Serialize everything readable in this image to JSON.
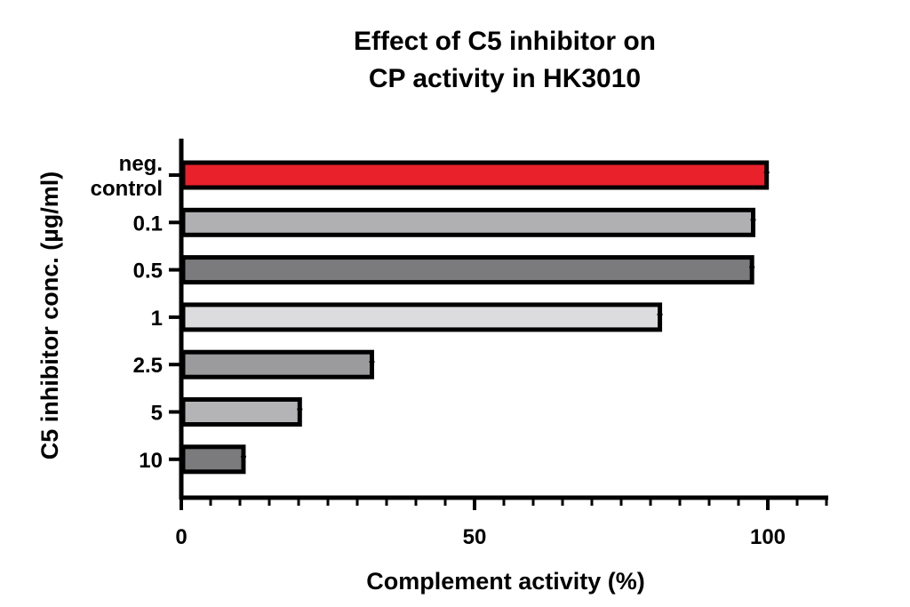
{
  "chart_data": {
    "type": "bar",
    "orientation": "horizontal",
    "title_lines": [
      "Effect of C5 inhibitor on",
      "CP activity in HK3010"
    ],
    "xlabel": "Complement activity (%)",
    "ylabel": "C5 inhibitor conc. (µg/ml)",
    "xlim": [
      0,
      110
    ],
    "xticks": [
      "0",
      "50",
      "100"
    ],
    "categories": [
      {
        "lines": [
          "neg.",
          "control"
        ],
        "value": 99.8,
        "color": "#e8212b"
      },
      {
        "lines": [
          "0.1"
        ],
        "value": 97.5,
        "color": "#b0b0b2"
      },
      {
        "lines": [
          "0.5"
        ],
        "value": 97.3,
        "color": "#7b7b7d"
      },
      {
        "lines": [
          "1"
        ],
        "value": 81.6,
        "color": "#dcdcde"
      },
      {
        "lines": [
          "2.5"
        ],
        "value": 32.5,
        "color": "#9b9b9d"
      },
      {
        "lines": [
          "5"
        ],
        "value": 20.2,
        "color": "#b4b4b6"
      },
      {
        "lines": [
          "10"
        ],
        "value": 10.6,
        "color": "#7b7b7d"
      }
    ],
    "bar_outline_color": "#000000",
    "grid": false
  }
}
